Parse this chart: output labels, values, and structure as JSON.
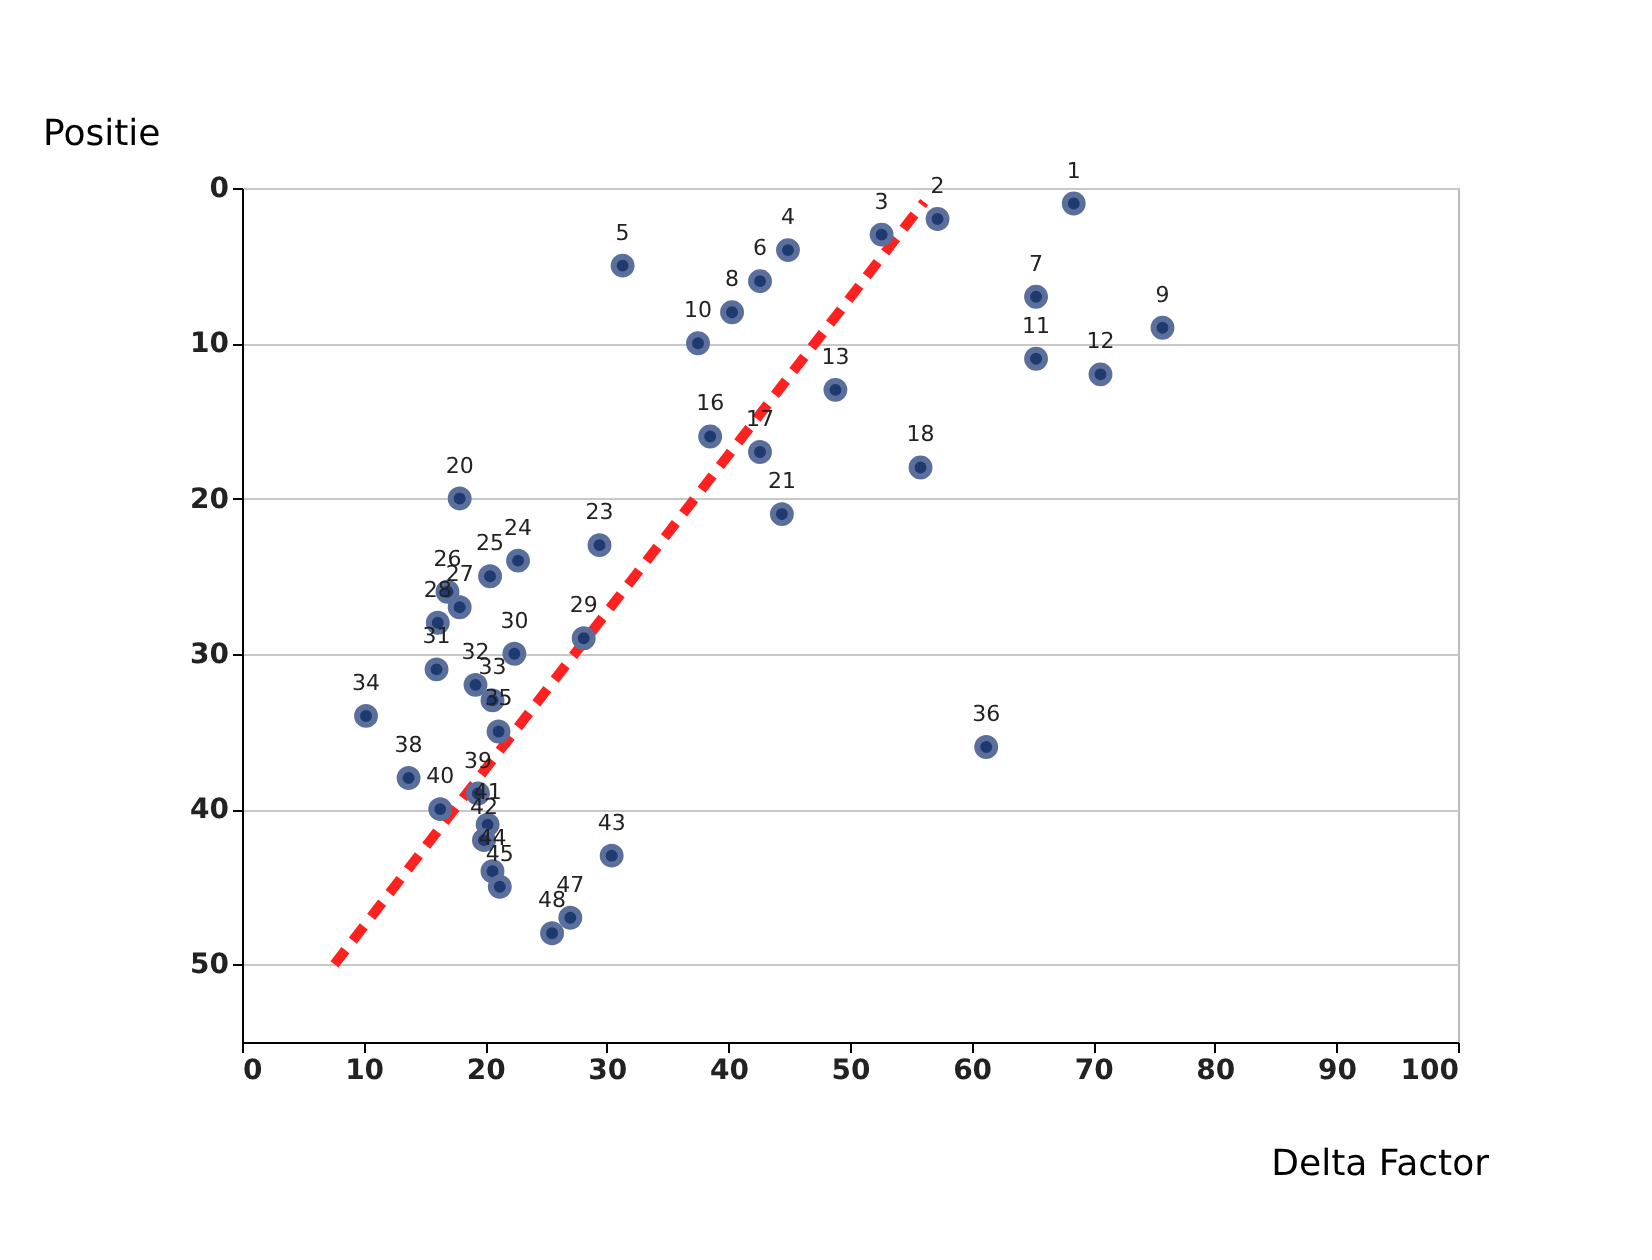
{
  "chart_data": {
    "type": "scatter",
    "xlabel": "Delta Factor",
    "ylabel": "Positie",
    "xlim": [
      0,
      100
    ],
    "xticks": [
      0,
      10,
      20,
      30,
      40,
      50,
      60,
      70,
      80,
      90,
      100
    ],
    "ylim": [
      55,
      0
    ],
    "yticks": [
      0,
      10,
      20,
      30,
      40,
      50
    ],
    "grid": "y",
    "series": [
      {
        "type": "line",
        "color": "#ff2020",
        "line_style": "dashed",
        "x": [
          7.6,
          56.1
        ],
        "values": [
          50,
          0.9
        ]
      },
      {
        "color": "#1f3a6e",
        "marker": "circle",
        "x": [
          68.4,
          57.2,
          52.6,
          44.9,
          31.3,
          42.6,
          65.3,
          40.3,
          75.7,
          37.5,
          65.3,
          70.6,
          48.8,
          38.5,
          42.6,
          55.8,
          17.9,
          44.4,
          29.4,
          22.7,
          20.4,
          16.9,
          17.9,
          16.1,
          28.1,
          22.4,
          16.0,
          19.2,
          20.6,
          10.2,
          21.1,
          61.2,
          13.7,
          19.4,
          16.3,
          20.2,
          19.9,
          30.4,
          20.6,
          21.2,
          27.0,
          25.5
        ],
        "values": [
          1,
          2,
          3,
          4,
          5,
          6,
          7,
          8,
          9,
          10,
          11,
          12,
          13,
          16,
          17,
          18,
          20,
          21,
          23,
          24,
          25,
          26,
          27,
          28,
          29,
          30,
          31,
          32,
          33,
          34,
          35,
          36,
          38,
          39,
          40,
          41,
          42,
          43,
          44,
          45,
          47,
          48
        ],
        "value_labels": [
          "1",
          "2",
          "3",
          "4",
          "5",
          "6",
          "7",
          "8",
          "9",
          "10",
          "11",
          "12",
          "13",
          "16",
          "17",
          "18",
          "20",
          "21",
          "23",
          "24",
          "25",
          "26",
          "27",
          "28",
          "29",
          "30",
          "31",
          "32",
          "33",
          "34",
          "35",
          "36",
          "38",
          "39",
          "40",
          "41",
          "42",
          "43",
          "44",
          "45",
          "47",
          "48"
        ]
      }
    ]
  }
}
